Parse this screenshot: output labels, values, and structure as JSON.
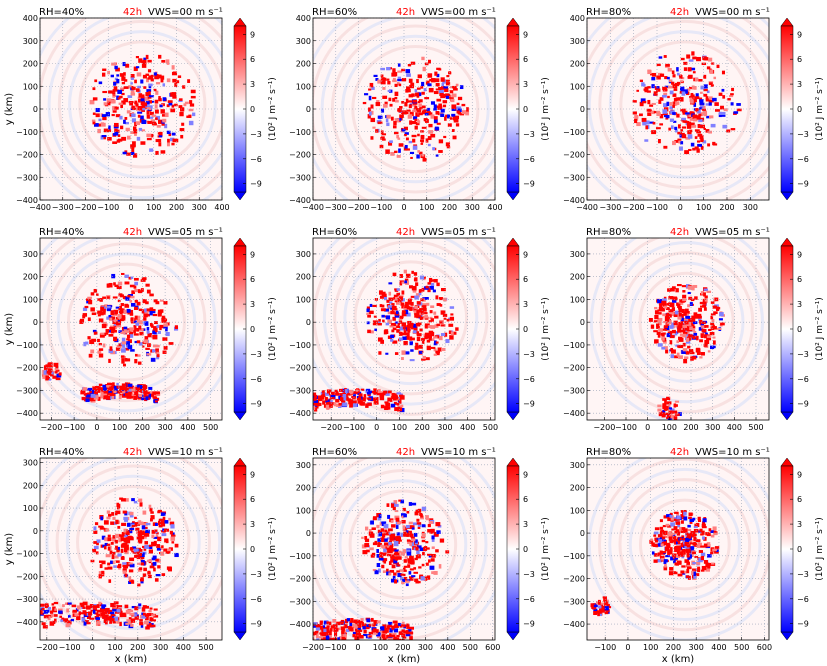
{
  "figure": {
    "colorbar": {
      "ticks": [
        9,
        6,
        3,
        0,
        -3,
        -6,
        -9
      ],
      "tick_labels": [
        "9",
        "6",
        "3",
        "0",
        "−3",
        "−6",
        "−9"
      ],
      "vmin": -10,
      "vmax": 10,
      "label": "(10² J m⁻² s⁻¹)",
      "colors": {
        "negative": "#0000ff",
        "zero": "#ffffff",
        "positive": "#ff0000"
      }
    },
    "ylabel": "y (km)",
    "xlabel": "x (km)",
    "time_label": "42h",
    "time_color": "#ff0000",
    "grid": true
  },
  "chart_data": [
    {
      "type": "heatmap",
      "rh": "RH=40%",
      "time": "42h",
      "vws": "VWS=00 m s⁻¹",
      "xlim": [
        -400,
        400
      ],
      "ylim": [
        -400,
        400
      ],
      "xticks": [
        -400,
        -300,
        -200,
        -100,
        0,
        100,
        200,
        300,
        400
      ],
      "yticks": [
        -400,
        -300,
        -200,
        -100,
        0,
        100,
        200,
        300,
        400
      ],
      "ylabel": "y (km)",
      "xlabel": "",
      "features": [
        {
          "kind": "ring",
          "cx": 50,
          "cy": 20,
          "r": 230
        }
      ]
    },
    {
      "type": "heatmap",
      "rh": "RH=60%",
      "time": "42h",
      "vws": "VWS=00 m s⁻¹",
      "xlim": [
        -400,
        400
      ],
      "ylim": [
        -400,
        400
      ],
      "xticks": [
        -400,
        -300,
        -200,
        -100,
        0,
        100,
        200,
        300,
        400
      ],
      "yticks": [
        -400,
        -300,
        -200,
        -100,
        0,
        100,
        200,
        300,
        400
      ],
      "ylabel": "",
      "xlabel": "",
      "features": [
        {
          "kind": "ring",
          "cx": 50,
          "cy": 0,
          "r": 230
        }
      ]
    },
    {
      "type": "heatmap",
      "rh": "RH=80%",
      "time": "42h",
      "vws": "VWS=00 m s⁻¹",
      "xlim": [
        -400,
        380
      ],
      "ylim": [
        -400,
        400
      ],
      "xticks": [
        -400,
        -300,
        -200,
        -100,
        0,
        100,
        200,
        300
      ],
      "yticks": [
        -400,
        -300,
        -200,
        -100,
        0,
        100,
        200,
        300,
        400
      ],
      "ylabel": "",
      "xlabel": "",
      "features": [
        {
          "kind": "spiral",
          "cx": 20,
          "cy": 20,
          "r": 230
        }
      ]
    },
    {
      "type": "heatmap",
      "rh": "RH=40%",
      "time": "42h",
      "vws": "VWS=05 m s⁻¹",
      "xlim": [
        -250,
        550
      ],
      "ylim": [
        -430,
        370
      ],
      "xticks": [
        -200,
        -100,
        0,
        100,
        200,
        300,
        400,
        500
      ],
      "yticks": [
        -400,
        -300,
        -200,
        -100,
        0,
        100,
        200,
        300
      ],
      "ylabel": "y (km)",
      "xlabel": "",
      "features": [
        {
          "kind": "spiral",
          "cx": 130,
          "cy": 0,
          "r": 210
        },
        {
          "kind": "band",
          "cx": 100,
          "cy": -300,
          "r": 120
        },
        {
          "kind": "patch",
          "cx": -200,
          "cy": -220,
          "r": 40
        }
      ]
    },
    {
      "type": "heatmap",
      "rh": "RH=60%",
      "time": "42h",
      "vws": "VWS=05 m s⁻¹",
      "xlim": [
        -280,
        520
      ],
      "ylim": [
        -430,
        370
      ],
      "xticks": [
        -200,
        -100,
        0,
        100,
        200,
        300,
        400,
        500
      ],
      "yticks": [
        -400,
        -300,
        -200,
        -100,
        0,
        100,
        200,
        300
      ],
      "ylabel": "",
      "xlabel": "",
      "features": [
        {
          "kind": "spiral",
          "cx": 150,
          "cy": 20,
          "r": 200
        },
        {
          "kind": "band",
          "cx": -100,
          "cy": -330,
          "r": 150
        }
      ]
    },
    {
      "type": "heatmap",
      "rh": "RH=80%",
      "time": "42h",
      "vws": "VWS=05 m s⁻¹",
      "xlim": [
        -280,
        560
      ],
      "ylim": [
        -430,
        370
      ],
      "xticks": [
        -200,
        -100,
        0,
        100,
        200,
        300,
        400,
        500
      ],
      "yticks": [
        -400,
        -300,
        -200,
        -100,
        0,
        100,
        200,
        300
      ],
      "ylabel": "",
      "xlabel": "",
      "features": [
        {
          "kind": "ring",
          "cx": 180,
          "cy": 0,
          "r": 170
        },
        {
          "kind": "patch",
          "cx": 100,
          "cy": -380,
          "r": 50
        }
      ]
    },
    {
      "type": "heatmap",
      "rh": "RH=40%",
      "time": "42h",
      "vws": "VWS=10 m s⁻¹",
      "xlim": [
        -230,
        570
      ],
      "ylim": [
        -480,
        320
      ],
      "xticks": [
        -200,
        -100,
        0,
        100,
        200,
        300,
        400,
        500
      ],
      "yticks": [
        -400,
        -300,
        -200,
        -100,
        0,
        100,
        200,
        300
      ],
      "ylabel": "y (km)",
      "xlabel": "x (km)",
      "features": [
        {
          "kind": "spiral",
          "cx": 180,
          "cy": -50,
          "r": 200
        },
        {
          "kind": "band",
          "cx": 0,
          "cy": -360,
          "r": 200
        }
      ]
    },
    {
      "type": "heatmap",
      "rh": "RH=60%",
      "time": "42h",
      "vws": "VWS=10 m s⁻¹",
      "xlim": [
        -200,
        610
      ],
      "ylim": [
        -470,
        330
      ],
      "xticks": [
        -200,
        -100,
        0,
        100,
        200,
        300,
        400,
        500,
        600
      ],
      "yticks": [
        -400,
        -300,
        -200,
        -100,
        0,
        100,
        200,
        300
      ],
      "ylabel": "",
      "xlabel": "x (km)",
      "features": [
        {
          "kind": "spiral",
          "cx": 200,
          "cy": -50,
          "r": 190
        },
        {
          "kind": "band",
          "cx": 0,
          "cy": -420,
          "r": 170
        }
      ]
    },
    {
      "type": "heatmap",
      "rh": "RH=80%",
      "time": "42h",
      "vws": "VWS=10 m s⁻¹",
      "xlim": [
        -180,
        620
      ],
      "ylim": [
        -470,
        330
      ],
      "xticks": [
        -100,
        0,
        100,
        200,
        300,
        400,
        500,
        600
      ],
      "yticks": [
        -400,
        -300,
        -200,
        -100,
        0,
        100,
        200,
        300
      ],
      "ylabel": "",
      "xlabel": "x (km)",
      "features": [
        {
          "kind": "ring",
          "cx": 250,
          "cy": -50,
          "r": 150
        },
        {
          "kind": "patch",
          "cx": -120,
          "cy": -320,
          "r": 40
        }
      ]
    }
  ]
}
